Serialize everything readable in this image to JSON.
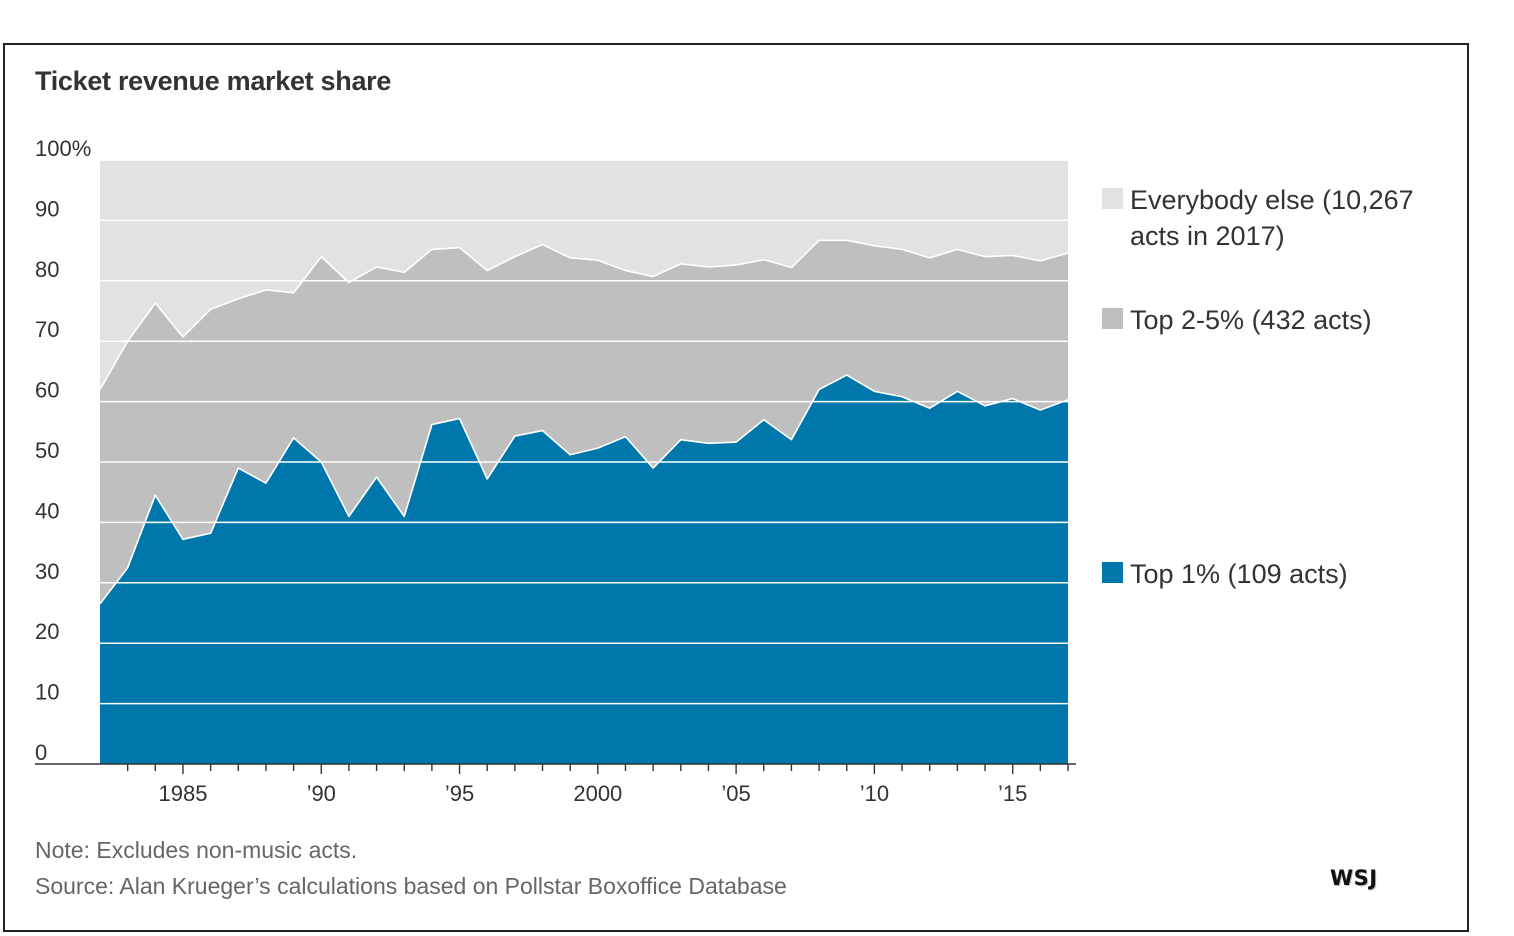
{
  "title": "Ticket revenue market share",
  "note": "Note: Excludes non-music acts.",
  "source": "Source: Alan Krueger’s calculations based on Pollstar Boxoffice Database",
  "logo": "WSJ",
  "colors": {
    "top1": "#0077aa",
    "top2_5": "#bfbfbf",
    "everybody_else": "#e2e2e4",
    "gridline": "#ffffff",
    "axis": "#333333"
  },
  "chart_data": {
    "type": "area",
    "stacked": true,
    "title": "Ticket revenue market share",
    "xlim": [
      1982,
      2017
    ],
    "ylim": [
      0,
      100
    ],
    "y_ticks": [
      0,
      10,
      20,
      30,
      40,
      50,
      60,
      70,
      80,
      90,
      100
    ],
    "y_tick_labels": [
      "0",
      "10",
      "20",
      "30",
      "40",
      "50",
      "60",
      "70",
      "80",
      "90",
      "100%"
    ],
    "x_tick_years": [
      1985,
      1990,
      1995,
      2000,
      2005,
      2010,
      2015
    ],
    "x_tick_labels": [
      "1985",
      "’90",
      "’95",
      "2000",
      "’05",
      "’10",
      "’15"
    ],
    "grid": true,
    "legend_position": "right",
    "x": [
      1982,
      1983,
      1984,
      1985,
      1986,
      1987,
      1988,
      1989,
      1990,
      1991,
      1992,
      1993,
      1994,
      1995,
      1996,
      1997,
      1998,
      1999,
      2000,
      2001,
      2002,
      2003,
      2004,
      2005,
      2006,
      2007,
      2008,
      2009,
      2010,
      2011,
      2012,
      2013,
      2014,
      2015,
      2016,
      2017
    ],
    "series": [
      {
        "name": "Top 1% (109 acts)",
        "key": "top1",
        "cumulative_values": [
          26.5,
          32.5,
          44.5,
          37.2,
          38.2,
          49,
          46.5,
          54,
          50,
          41,
          47.5,
          41,
          56.2,
          57.2,
          47.2,
          54.3,
          55.2,
          51.2,
          52.3,
          54.2,
          49,
          53.7,
          53.1,
          53.3,
          57,
          53.7,
          62,
          64.4,
          61.7,
          60.8,
          58.9,
          61.7,
          59.3,
          60.5,
          58.6,
          60.3
        ]
      },
      {
        "name": "Top 2-5% (432 acts)",
        "key": "top2_5",
        "cumulative_values": [
          62,
          70,
          76.3,
          70.7,
          75.3,
          77,
          78.5,
          78,
          84,
          79.7,
          82.3,
          81.4,
          85.2,
          85.5,
          81.7,
          84,
          86,
          83.8,
          83.4,
          81.7,
          80.7,
          82.8,
          82.3,
          82.6,
          83.5,
          82.2,
          86.7,
          86.7,
          85.8,
          85.2,
          83.8,
          85.2,
          84,
          84.2,
          83.3,
          84.6
        ]
      },
      {
        "name": "Everybody else (10,267 acts in 2017)",
        "key": "everybody_else",
        "cumulative_values": [
          100,
          100,
          100,
          100,
          100,
          100,
          100,
          100,
          100,
          100,
          100,
          100,
          100,
          100,
          100,
          100,
          100,
          100,
          100,
          100,
          100,
          100,
          100,
          100,
          100,
          100,
          100,
          100,
          100,
          100,
          100,
          100,
          100,
          100,
          100,
          100
        ]
      }
    ]
  },
  "legend": [
    {
      "key": "everybody_else",
      "label": "Everybody else (10,267 acts in 2017)"
    },
    {
      "key": "top2_5",
      "label": "Top 2-5% (432 acts)"
    },
    {
      "key": "top1",
      "label": "Top 1% (109 acts)"
    }
  ]
}
